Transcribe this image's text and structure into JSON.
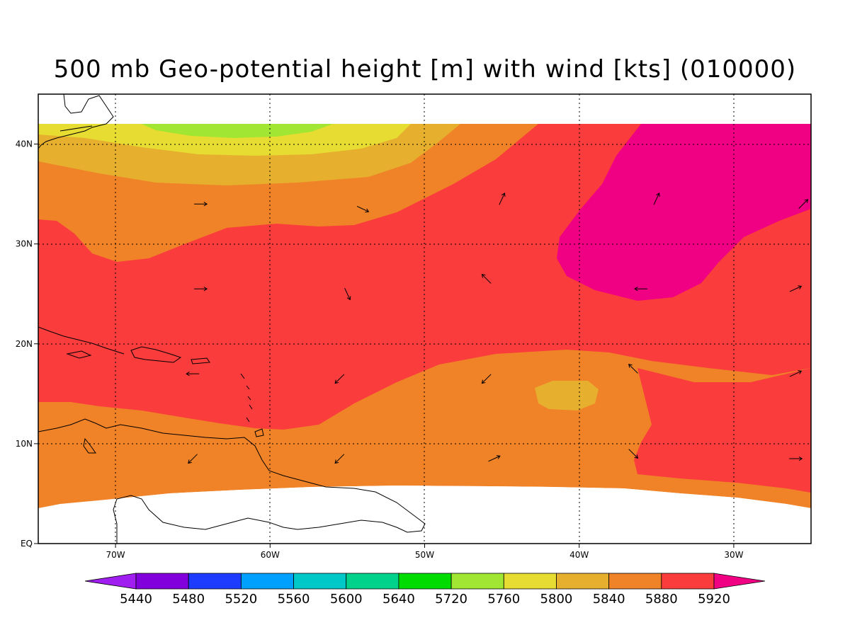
{
  "title": "500 mb Geo-potential height [m] with wind [kts] (010000)",
  "map": {
    "lon_range": [
      -75,
      -25
    ],
    "lat_range": [
      0,
      45
    ],
    "data_lat_max": 42,
    "lon_ticks": [
      {
        "value": -70,
        "label": "70W"
      },
      {
        "value": -60,
        "label": "60W"
      },
      {
        "value": -50,
        "label": "50W"
      },
      {
        "value": -40,
        "label": "40W"
      },
      {
        "value": -30,
        "label": "30W"
      }
    ],
    "lat_ticks": [
      {
        "value": 0,
        "label": "EQ"
      },
      {
        "value": 10,
        "label": "10N"
      },
      {
        "value": 20,
        "label": "20N"
      },
      {
        "value": 30,
        "label": "30N"
      },
      {
        "value": 40,
        "label": "40N"
      }
    ],
    "grid": "dotted"
  },
  "colorbar": {
    "colors": [
      "#a01ff0",
      "#8200dc",
      "#1e3cff",
      "#00a0ff",
      "#00c8c8",
      "#00d28c",
      "#00dc00",
      "#a0e632",
      "#e6dc32",
      "#e6af2d",
      "#f08228",
      "#fa3c3c",
      "#f00082"
    ],
    "labels": [
      "5440",
      "5480",
      "5520",
      "5560",
      "5600",
      "5640",
      "5720",
      "5760",
      "5800",
      "5840",
      "5880",
      "5920"
    ]
  },
  "winds": [
    {
      "lon": -64.5,
      "lat": 34.0,
      "dir": "E"
    },
    {
      "lon": -54.0,
      "lat": 33.5,
      "dir": "ESE"
    },
    {
      "lon": -45.0,
      "lat": 34.5,
      "dir": "NNE"
    },
    {
      "lon": -35.0,
      "lat": 34.5,
      "dir": "NNE"
    },
    {
      "lon": -25.5,
      "lat": 34.0,
      "dir": "NE"
    },
    {
      "lon": -64.5,
      "lat": 25.5,
      "dir": "E"
    },
    {
      "lon": -55.0,
      "lat": 25.0,
      "dir": "SSE"
    },
    {
      "lon": -46.0,
      "lat": 26.5,
      "dir": "NW"
    },
    {
      "lon": -36.0,
      "lat": 25.5,
      "dir": "W"
    },
    {
      "lon": -26.0,
      "lat": 25.5,
      "dir": "ENE"
    },
    {
      "lon": -65.0,
      "lat": 17.0,
      "dir": "W"
    },
    {
      "lon": -55.5,
      "lat": 16.5,
      "dir": "SW"
    },
    {
      "lon": -46.0,
      "lat": 16.5,
      "dir": "SW"
    },
    {
      "lon": -36.5,
      "lat": 17.5,
      "dir": "NW"
    },
    {
      "lon": -26.0,
      "lat": 17.0,
      "dir": "ENE"
    },
    {
      "lon": -65.0,
      "lat": 8.5,
      "dir": "SW"
    },
    {
      "lon": -55.5,
      "lat": 8.5,
      "dir": "SW"
    },
    {
      "lon": -45.5,
      "lat": 8.5,
      "dir": "ENE"
    },
    {
      "lon": -36.5,
      "lat": 9.0,
      "dir": "SE"
    },
    {
      "lon": -26.0,
      "lat": 8.5,
      "dir": "E"
    }
  ]
}
